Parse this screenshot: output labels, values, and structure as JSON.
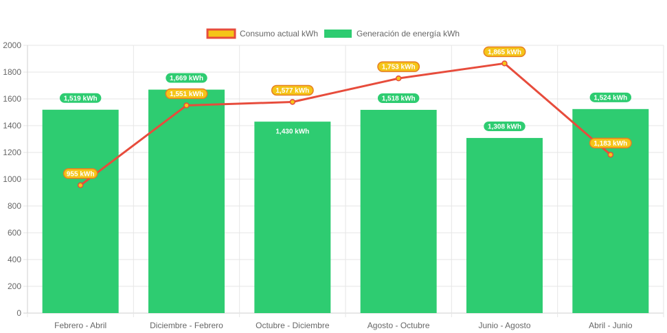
{
  "chart_data": {
    "type": "bar",
    "categories": [
      "Febrero - Abril",
      "Diciembre - Febrero",
      "Octubre - Diciembre",
      "Agosto - Octubre",
      "Junio - Agosto",
      "Abril - Junio"
    ],
    "series": [
      {
        "name": "Consumo actual kWh",
        "type": "line",
        "values": [
          955,
          1551,
          1577,
          1753,
          1865,
          1183
        ],
        "labels": [
          "955 kWh",
          "1,551 kWh",
          "1,577 kWh",
          "1,753 kWh",
          "1,865 kWh",
          "1,183 kWh"
        ],
        "color": "#e74c3c",
        "fill": "#f5c518"
      },
      {
        "name": "Generación de energía kWh",
        "type": "bar",
        "values": [
          1519,
          1669,
          1430,
          1518,
          1308,
          1524
        ],
        "labels": [
          "1,519 kWh",
          "1,669 kWh",
          "1,430 kWh",
          "1,518 kWh",
          "1,308 kWh",
          "1,524 kWh"
        ],
        "color": "#2ecc71"
      }
    ],
    "ylim": [
      0,
      2000
    ],
    "yticks": [
      "0",
      "200",
      "400",
      "600",
      "800",
      "1000",
      "1200",
      "1400",
      "1600",
      "1800",
      "2000"
    ],
    "grid": true,
    "legend_position": "top-center",
    "title": "",
    "xlabel": "",
    "ylabel": ""
  }
}
